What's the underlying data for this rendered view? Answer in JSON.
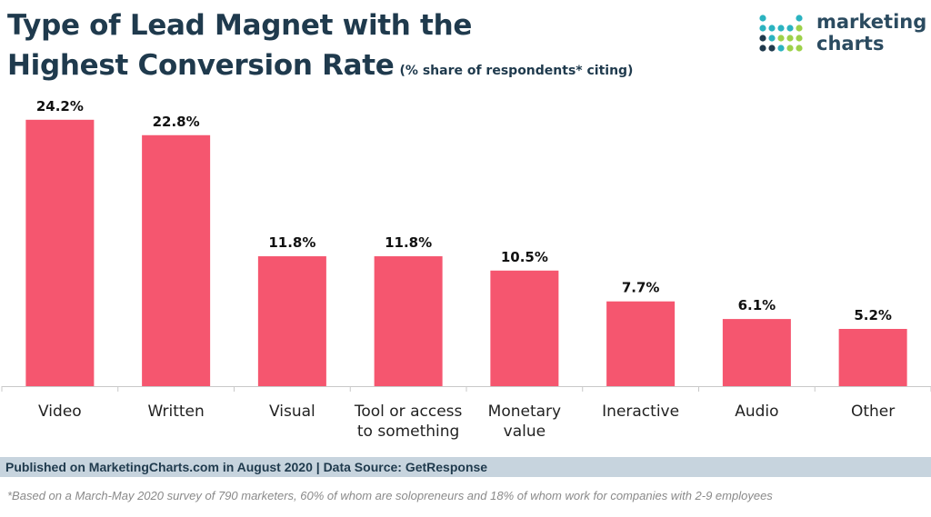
{
  "header": {
    "title_line1": "Type of Lead Magnet with the",
    "title_line2": "Highest Conversion Rate",
    "subtitle": "(% share of respondents* citing)"
  },
  "logo": {
    "line1": "marketing",
    "line2": "charts",
    "dot_colors": [
      "#1f3a4d",
      "#2bb3c0",
      "#9dd14a"
    ]
  },
  "chart_data": {
    "type": "bar",
    "categories": [
      [
        "Video"
      ],
      [
        "Written"
      ],
      [
        "Visual"
      ],
      [
        "Tool or access",
        "to something"
      ],
      [
        "Monetary",
        "value"
      ],
      [
        "Ineractive"
      ],
      [
        "Audio"
      ],
      [
        "Other"
      ]
    ],
    "values": [
      24.2,
      22.8,
      11.8,
      11.8,
      10.5,
      7.7,
      6.1,
      5.2
    ],
    "value_labels": [
      "24.2%",
      "22.8%",
      "11.8%",
      "11.8%",
      "10.5%",
      "7.7%",
      "6.1%",
      "5.2%"
    ],
    "ylim": [
      0,
      26
    ],
    "grid": false,
    "bar_color": "#f5566f"
  },
  "footer": {
    "source": "Published on MarketingCharts.com in August 2020 | Data Source: GetResponse",
    "note": "*Based on a March-May 2020 survey of 790 marketers, 60% of whom are solopreneurs and 18% of whom work for companies with 2-9 employees"
  }
}
